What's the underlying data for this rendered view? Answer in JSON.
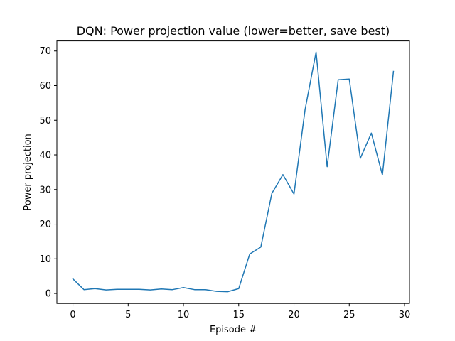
{
  "chart_data": {
    "type": "line",
    "title": "DQN: Power projection value (lower=better, save best)",
    "xlabel": "Episode #",
    "ylabel": "Power projection",
    "xlim": [
      -1.45,
      30.45
    ],
    "ylim": [
      -2.9,
      72.9
    ],
    "xticks": [
      0,
      5,
      10,
      15,
      20,
      25,
      30
    ],
    "yticks": [
      0,
      10,
      20,
      30,
      40,
      50,
      60,
      70
    ],
    "grid": false,
    "series": [
      {
        "color": "#1f77b4",
        "x": [
          0,
          1,
          2,
          3,
          4,
          5,
          6,
          7,
          8,
          9,
          10,
          11,
          12,
          13,
          14,
          15,
          16,
          17,
          18,
          19,
          20,
          21,
          22,
          23,
          24,
          25,
          26,
          27,
          28,
          29
        ],
        "y": [
          4.2,
          1.1,
          1.4,
          1.0,
          1.2,
          1.2,
          1.2,
          1.0,
          1.3,
          1.1,
          1.7,
          1.1,
          1.1,
          0.6,
          0.5,
          1.4,
          11.4,
          13.4,
          28.9,
          34.3,
          28.7,
          53.0,
          69.7,
          36.6,
          61.7,
          61.9,
          39.0,
          46.3,
          34.2,
          64.1
        ]
      }
    ]
  }
}
